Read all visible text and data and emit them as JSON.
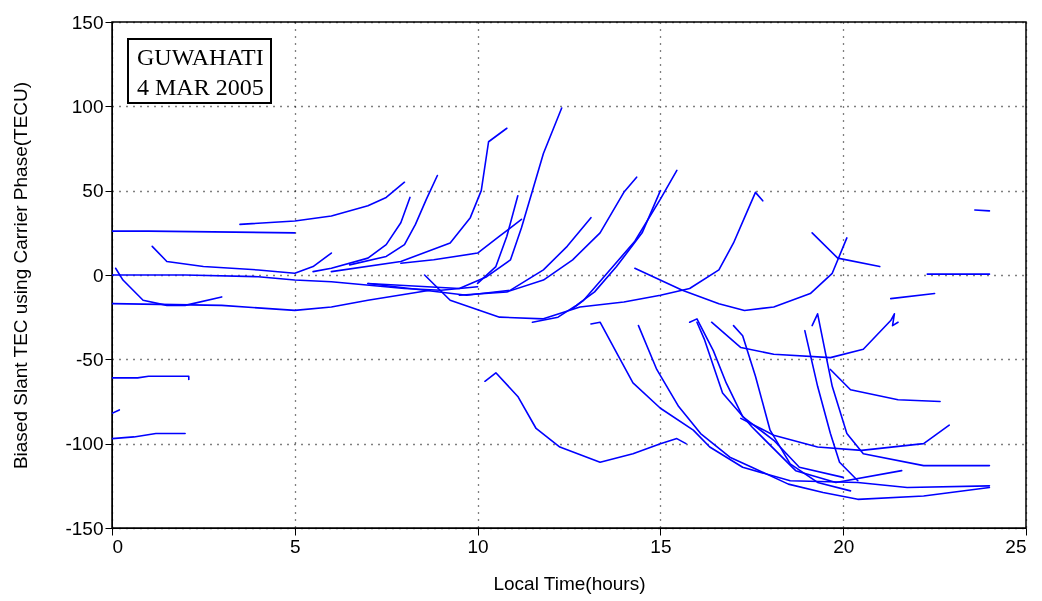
{
  "chart_data": {
    "type": "line",
    "xlabel": "Local Time(hours)",
    "ylabel": "Biased Slant TEC using Carrier Phase(TECU)",
    "annotations": [
      "GUWAHATI",
      "4 MAR 2005"
    ],
    "xlim": [
      0,
      25
    ],
    "xticks": [
      0,
      5,
      10,
      15,
      20,
      25
    ],
    "ylim": [
      -150,
      150
    ],
    "yticks": [
      -150,
      -100,
      -50,
      0,
      50,
      100,
      150
    ],
    "grid": true,
    "line_style": "solid",
    "legend": false,
    "series": [
      {
        "color": "#0000ff",
        "x": [
          0,
          1,
          5
        ],
        "values": [
          26,
          26,
          25
        ]
      },
      {
        "color": "#0000ff",
        "x": [
          3.5,
          5,
          6,
          7,
          7.5,
          8
        ],
        "values": [
          30,
          32,
          35,
          41,
          46,
          55
        ]
      },
      {
        "color": "#0000ff",
        "x": [
          1.1,
          1.5,
          2.5,
          4,
          5,
          5.5,
          6
        ],
        "values": [
          17,
          8,
          5,
          3,
          1,
          5,
          13
        ]
      },
      {
        "color": "#0000ff",
        "x": [
          0,
          2,
          4,
          5,
          6,
          8,
          9,
          10
        ],
        "values": [
          0,
          0,
          -1,
          -3,
          -4,
          -8,
          -9,
          -7
        ]
      },
      {
        "color": "#0000ff",
        "x": [
          0.1,
          0.3,
          0.85,
          1.5,
          2,
          3
        ],
        "values": [
          4,
          -3,
          -15,
          -18,
          -18,
          -13
        ]
      },
      {
        "color": "#0000ff",
        "x": [
          0,
          3,
          5,
          6,
          7,
          8.7
        ],
        "values": [
          -17,
          -18,
          -21,
          -19,
          -15,
          -9
        ]
      },
      {
        "color": "#0000ff",
        "x": [
          5.5,
          6,
          7,
          7.5,
          7.9,
          8.15
        ],
        "values": [
          2,
          4,
          10,
          18,
          31,
          46
        ]
      },
      {
        "color": "#0000ff",
        "x": [
          6.5,
          7.5,
          8,
          8.3,
          8.6,
          8.9
        ],
        "values": [
          6,
          11,
          18,
          30,
          45,
          59
        ]
      },
      {
        "color": "#0000ff",
        "x": [
          6,
          7.9,
          9.25,
          9.8,
          10.1,
          10.3,
          10.8
        ],
        "values": [
          2,
          8,
          19,
          34,
          50,
          79,
          87
        ]
      },
      {
        "color": "#0000ff",
        "x": [
          7,
          9.5,
          10.25,
          10.9,
          11.2,
          11.5,
          11.8,
          12.3
        ],
        "values": [
          -5,
          -8,
          -1,
          9,
          28,
          50,
          72,
          99
        ]
      },
      {
        "color": "#0000ff",
        "x": [
          10,
          10.5,
          10.8,
          11.1
        ],
        "values": [
          -5,
          5,
          23,
          47
        ]
      },
      {
        "color": "#0000ff",
        "x": [
          7.9,
          8.8,
          10,
          10.6,
          11.2
        ],
        "values": [
          7,
          9,
          13,
          23,
          33
        ]
      },
      {
        "color": "#0000ff",
        "x": [
          8.55,
          9.25,
          10.6,
          11.8,
          12.8,
          14,
          15,
          15.8,
          16.6,
          17,
          17.3,
          17.6,
          17.8
        ],
        "values": [
          0,
          -15,
          -25,
          -26,
          -19,
          -16,
          -12,
          -8,
          3,
          19,
          34,
          49,
          44
        ]
      },
      {
        "color": "#0000ff",
        "x": [
          7,
          9.7,
          10.9,
          11.8,
          12.45,
          13.1
        ],
        "values": [
          -5,
          -12,
          -9,
          3,
          17,
          34
        ]
      },
      {
        "color": "#0000ff",
        "x": [
          9.5,
          10.8,
          11.8,
          12.6,
          13.35,
          14,
          14.35
        ],
        "values": [
          -12,
          -10,
          -3,
          9,
          25,
          49,
          58
        ]
      },
      {
        "color": "#0000ff",
        "x": [
          11.5,
          12.2,
          12.7,
          13.2,
          13.8,
          14.5,
          15
        ],
        "values": [
          -28,
          -25,
          -18,
          -10,
          5,
          25,
          50
        ]
      },
      {
        "color": "#0000ff",
        "x": [
          12.6,
          12.9,
          13.5,
          14.3,
          15,
          15.45
        ],
        "values": [
          -20,
          -15,
          0,
          20,
          45,
          62
        ]
      },
      {
        "color": "#0000ff",
        "x": [
          14.3,
          15.6,
          16.1,
          16.6,
          17.3,
          18.1,
          19.1,
          19.7,
          20.1
        ],
        "values": [
          4,
          -9,
          -13,
          -17,
          -21,
          -19,
          -11,
          1,
          22
        ]
      },
      {
        "color": "#0000ff",
        "x": [
          19.15,
          19.85,
          21
        ],
        "values": [
          25,
          10,
          5
        ]
      },
      {
        "color": "#0000ff",
        "x": [
          22.3,
          24
        ],
        "values": [
          0.5,
          0.5
        ]
      },
      {
        "color": "#0000ff",
        "x": [
          23.6,
          24
        ],
        "values": [
          38.5,
          38
        ]
      },
      {
        "color": "#0000ff",
        "x": [
          21.3,
          22.5
        ],
        "values": [
          -14,
          -11
        ]
      },
      {
        "color": "#0000ff",
        "x": [
          0,
          0.7,
          1,
          2.1,
          2.1
        ],
        "values": [
          -61,
          -61,
          -60,
          -60,
          -62
        ]
      },
      {
        "color": "#0000ff",
        "x": [
          0,
          0.2
        ],
        "values": [
          -82,
          -80
        ]
      },
      {
        "color": "#0000ff",
        "x": [
          0,
          0.6,
          1.2,
          2
        ],
        "values": [
          -97,
          -96,
          -94,
          -94
        ]
      },
      {
        "color": "#0000ff",
        "x": [
          10.2,
          10.5,
          11.1,
          11.6,
          12.25,
          13.35,
          14.25,
          15,
          15.45,
          15.7
        ],
        "values": [
          -63,
          -58,
          -72,
          -91,
          -102,
          -111,
          -106,
          -100,
          -97,
          -100
        ]
      },
      {
        "color": "#0000ff",
        "x": [
          13.1,
          13.35,
          13.8,
          14.25,
          15,
          15.9,
          16.35,
          17.25,
          18.55,
          20.4,
          21.75,
          24
        ],
        "values": [
          -29,
          -28,
          -46,
          -64,
          -79,
          -92,
          -102,
          -114,
          -122,
          -123,
          -126,
          -125
        ]
      },
      {
        "color": "#0000ff",
        "x": [
          14.4,
          14.9,
          15.5,
          16.1,
          16.9,
          17.5,
          18.5,
          19.45,
          20.4,
          22.2,
          24
        ],
        "values": [
          -30,
          -56,
          -78,
          -94,
          -108,
          -114,
          -124,
          -129,
          -133,
          -131,
          -126
        ]
      },
      {
        "color": "#0000ff",
        "x": [
          15.8,
          16,
          16.45,
          16.8,
          17.25,
          18.1,
          18.8,
          20
        ],
        "values": [
          -28,
          -26,
          -45,
          -64,
          -84,
          -98,
          -114,
          -120
        ]
      },
      {
        "color": "#0000ff",
        "x": [
          16,
          16.2,
          16.7,
          17.5,
          18.7,
          19.8,
          21.6
        ],
        "values": [
          -28,
          -38,
          -70,
          -90,
          -116,
          -123,
          -116
        ]
      },
      {
        "color": "#0000ff",
        "x": [
          16.4,
          17.2,
          18.1,
          19.65,
          20.55,
          21.3,
          21.4,
          21.35,
          21.5
        ],
        "values": [
          -28,
          -43,
          -47,
          -49,
          -44,
          -27,
          -23,
          -30,
          -28
        ]
      },
      {
        "color": "#0000ff",
        "x": [
          17,
          17.25,
          17.6,
          18,
          18.55,
          19.3,
          20.2
        ],
        "values": [
          -30,
          -36,
          -60,
          -92,
          -112,
          -123,
          -128
        ]
      },
      {
        "color": "#0000ff",
        "x": [
          18.95,
          19.3,
          19.65,
          19.9,
          20.4
        ],
        "values": [
          -33,
          -66,
          -94,
          -111,
          -122
        ]
      },
      {
        "color": "#0000ff",
        "x": [
          19.15,
          19.3,
          19.55,
          19.7,
          20.1,
          20.55,
          22.2,
          24
        ],
        "values": [
          -30,
          -23,
          -50,
          -66,
          -94,
          -106,
          -113,
          -113
        ]
      },
      {
        "color": "#0000ff",
        "x": [
          19.65,
          20.2,
          21.5,
          22.65
        ],
        "values": [
          -56,
          -68,
          -74,
          -75
        ]
      },
      {
        "color": "#0000ff",
        "x": [
          17.2,
          18.1,
          19.3,
          20.5,
          22.2,
          22.9
        ],
        "values": [
          -85,
          -95,
          -102,
          -104,
          -100,
          -89
        ]
      }
    ]
  }
}
